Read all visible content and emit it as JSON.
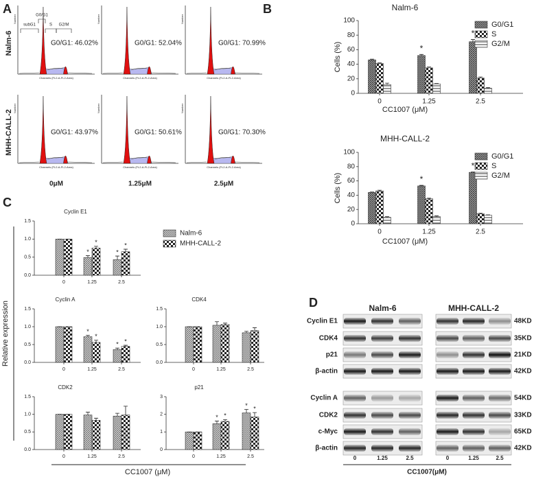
{
  "panel_labels": [
    "A",
    "B",
    "C",
    "D"
  ],
  "panel_a": {
    "row_labels": [
      "Nalm-6",
      "MHH-CALL-2"
    ],
    "column_labels": [
      "0μM",
      "1.25μM",
      "2.5μM"
    ],
    "gate_labels": [
      "subG1",
      "G0/G1",
      "S",
      "G2/M"
    ],
    "x_axis_label": "Channels (FL2-A-FL2-Area)",
    "y_axis_label": "Number",
    "percentages": [
      [
        "G0/G1: 46.02%",
        "G0/G1: 52.04%",
        "G0/G1: 70.99%"
      ],
      [
        "G0/G1: 43.97%",
        "G0/G1: 50.61%",
        "G0/G1: 70.30%"
      ]
    ]
  },
  "panel_c": {
    "ylabel": "Relative expression",
    "xlabel": "CC1007 (μM)"
  },
  "panel_d": {
    "columns": [
      "Nalm-6",
      "MHH-CALL-2"
    ],
    "groups": [
      {
        "rows": [
          {
            "protein": "Cyclin E1",
            "size": "48KD"
          },
          {
            "protein": "CDK4",
            "size": "35KD"
          },
          {
            "protein": "p21",
            "size": "21KD"
          },
          {
            "protein": "β-actin",
            "size": "42KD"
          }
        ]
      },
      {
        "rows": [
          {
            "protein": "Cyclin A",
            "size": "54KD"
          },
          {
            "protein": "CDK2",
            "size": "33KD"
          },
          {
            "protein": "c-Myc",
            "size": "65KD"
          },
          {
            "protein": "β-actin",
            "size": "42KD"
          }
        ]
      }
    ],
    "lanes": [
      "0",
      "1.25",
      "2.5"
    ],
    "xlabel": "CC1007(μM)"
  },
  "chart_data": [
    {
      "type": "bar",
      "title": "Nalm-6",
      "xlabel": "CC1007 (μM)",
      "ylabel": "Cells (%)",
      "legend": "top-right",
      "categories": [
        "0",
        "1.25",
        "2.5"
      ],
      "series": [
        {
          "name": "G0/G1",
          "pattern": "crosshatch",
          "values": [
            46,
            52,
            71
          ],
          "errors": [
            1,
            1.5,
            3
          ],
          "annotations": [
            null,
            "*",
            "*"
          ]
        },
        {
          "name": "S",
          "pattern": "checker",
          "values": [
            41,
            35,
            21
          ],
          "errors": [
            0.8,
            1.2,
            1.5
          ]
        },
        {
          "name": "G2/M",
          "pattern": "stripes",
          "values": [
            12,
            13,
            7
          ],
          "errors": [
            2,
            0.5,
            1
          ]
        }
      ],
      "ylim": [
        0,
        100
      ],
      "yticks": [
        0,
        20,
        40,
        60,
        80,
        100
      ]
    },
    {
      "type": "bar",
      "title": "MHH-CALL-2",
      "xlabel": "CC1007 (μM)",
      "ylabel": "Cells (%)",
      "legend": "top-right",
      "categories": [
        "0",
        "1.25",
        "2.5"
      ],
      "series": [
        {
          "name": "G0/G1",
          "pattern": "crosshatch",
          "values": [
            44,
            53,
            72
          ],
          "errors": [
            0.5,
            0.8,
            0.6
          ],
          "annotations": [
            null,
            "*",
            "*"
          ]
        },
        {
          "name": "S",
          "pattern": "checker",
          "values": [
            46,
            35,
            14
          ],
          "errors": [
            1,
            0.8,
            0.6
          ]
        },
        {
          "name": "G2/M",
          "pattern": "stripes",
          "values": [
            9,
            10,
            12
          ],
          "errors": [
            1,
            1,
            0.5
          ]
        }
      ],
      "ylim": [
        0,
        100
      ],
      "yticks": [
        0,
        20,
        40,
        60,
        80,
        100
      ]
    },
    {
      "type": "bar",
      "title": "Cyclin E1",
      "legend": "right",
      "categories": [
        "0",
        "1.25",
        "2.5"
      ],
      "series": [
        {
          "name": "Nalm-6",
          "pattern": "fine",
          "values": [
            1,
            0.49,
            0.43
          ],
          "errors": [
            0,
            0.05,
            0.1
          ],
          "annotations": [
            null,
            "*",
            "*"
          ]
        },
        {
          "name": "MHH-CALL-2",
          "pattern": "checker",
          "values": [
            1,
            0.75,
            0.65
          ],
          "errors": [
            0,
            0.05,
            0.07
          ],
          "annotations": [
            null,
            "*",
            "*"
          ]
        }
      ],
      "ylim": [
        0,
        1.5
      ],
      "yticks": [
        {
          "value": 0,
          "label": "0.0"
        },
        0.5,
        {
          "value": 1,
          "label": "1.0"
        },
        1.5
      ]
    },
    {
      "type": "bar",
      "title": "Cyclin A",
      "categories": [
        "0",
        "1.25",
        "2.5"
      ],
      "series": [
        {
          "pattern": "fine",
          "values": [
            1,
            0.72,
            0.36
          ],
          "errors": [
            0,
            0.04,
            0.04
          ],
          "annotations": [
            null,
            "*",
            "*"
          ]
        },
        {
          "pattern": "checker",
          "values": [
            1,
            0.56,
            0.45
          ],
          "errors": [
            0,
            0.06,
            0.03
          ],
          "annotations": [
            null,
            "*",
            "*"
          ]
        }
      ],
      "ylim": [
        0,
        1.5
      ],
      "yticks": [
        {
          "value": 0,
          "label": "0.0"
        },
        0.5,
        {
          "value": 1,
          "label": "1.0"
        },
        1.5
      ]
    },
    {
      "type": "bar",
      "title": "CDK4",
      "categories": [
        "0",
        "1.25",
        "2.5"
      ],
      "series": [
        {
          "pattern": "fine",
          "values": [
            1,
            1.04,
            0.83
          ],
          "errors": [
            0,
            0.1,
            0.04
          ]
        },
        {
          "pattern": "checker",
          "values": [
            1,
            1.06,
            0.89
          ],
          "errors": [
            0,
            0.04,
            0.08
          ]
        }
      ],
      "ylim": [
        0,
        1.5
      ],
      "yticks": [
        {
          "value": 0,
          "label": "0.0"
        },
        0.5,
        {
          "value": 1,
          "label": "1.0"
        },
        1.5
      ]
    },
    {
      "type": "bar",
      "title": "CDK2",
      "categories": [
        "0",
        "1.25",
        "2.5"
      ],
      "series": [
        {
          "pattern": "fine",
          "values": [
            1,
            0.98,
            0.95
          ],
          "errors": [
            0,
            0.08,
            0.08
          ]
        },
        {
          "pattern": "checker",
          "values": [
            1,
            0.83,
            0.98
          ],
          "errors": [
            0,
            0.06,
            0.25
          ]
        }
      ],
      "ylim": [
        0,
        1.5
      ],
      "yticks": [
        {
          "value": 0,
          "label": "0.0"
        },
        0.5,
        {
          "value": 1,
          "label": "1.0"
        },
        1.5
      ]
    },
    {
      "type": "bar",
      "title": "p21",
      "categories": [
        "0",
        "1.25",
        "2.5"
      ],
      "series": [
        {
          "pattern": "fine",
          "values": [
            1,
            1.47,
            2.08
          ],
          "errors": [
            0,
            0.15,
            0.2
          ],
          "annotations": [
            null,
            "*",
            "*"
          ]
        },
        {
          "pattern": "checker",
          "values": [
            1,
            1.6,
            1.85
          ],
          "errors": [
            0,
            0.1,
            0.25
          ],
          "annotations": [
            null,
            "*",
            "*"
          ]
        }
      ],
      "ylim": [
        0,
        3
      ],
      "yticks": [
        0,
        1,
        2,
        3
      ]
    }
  ]
}
